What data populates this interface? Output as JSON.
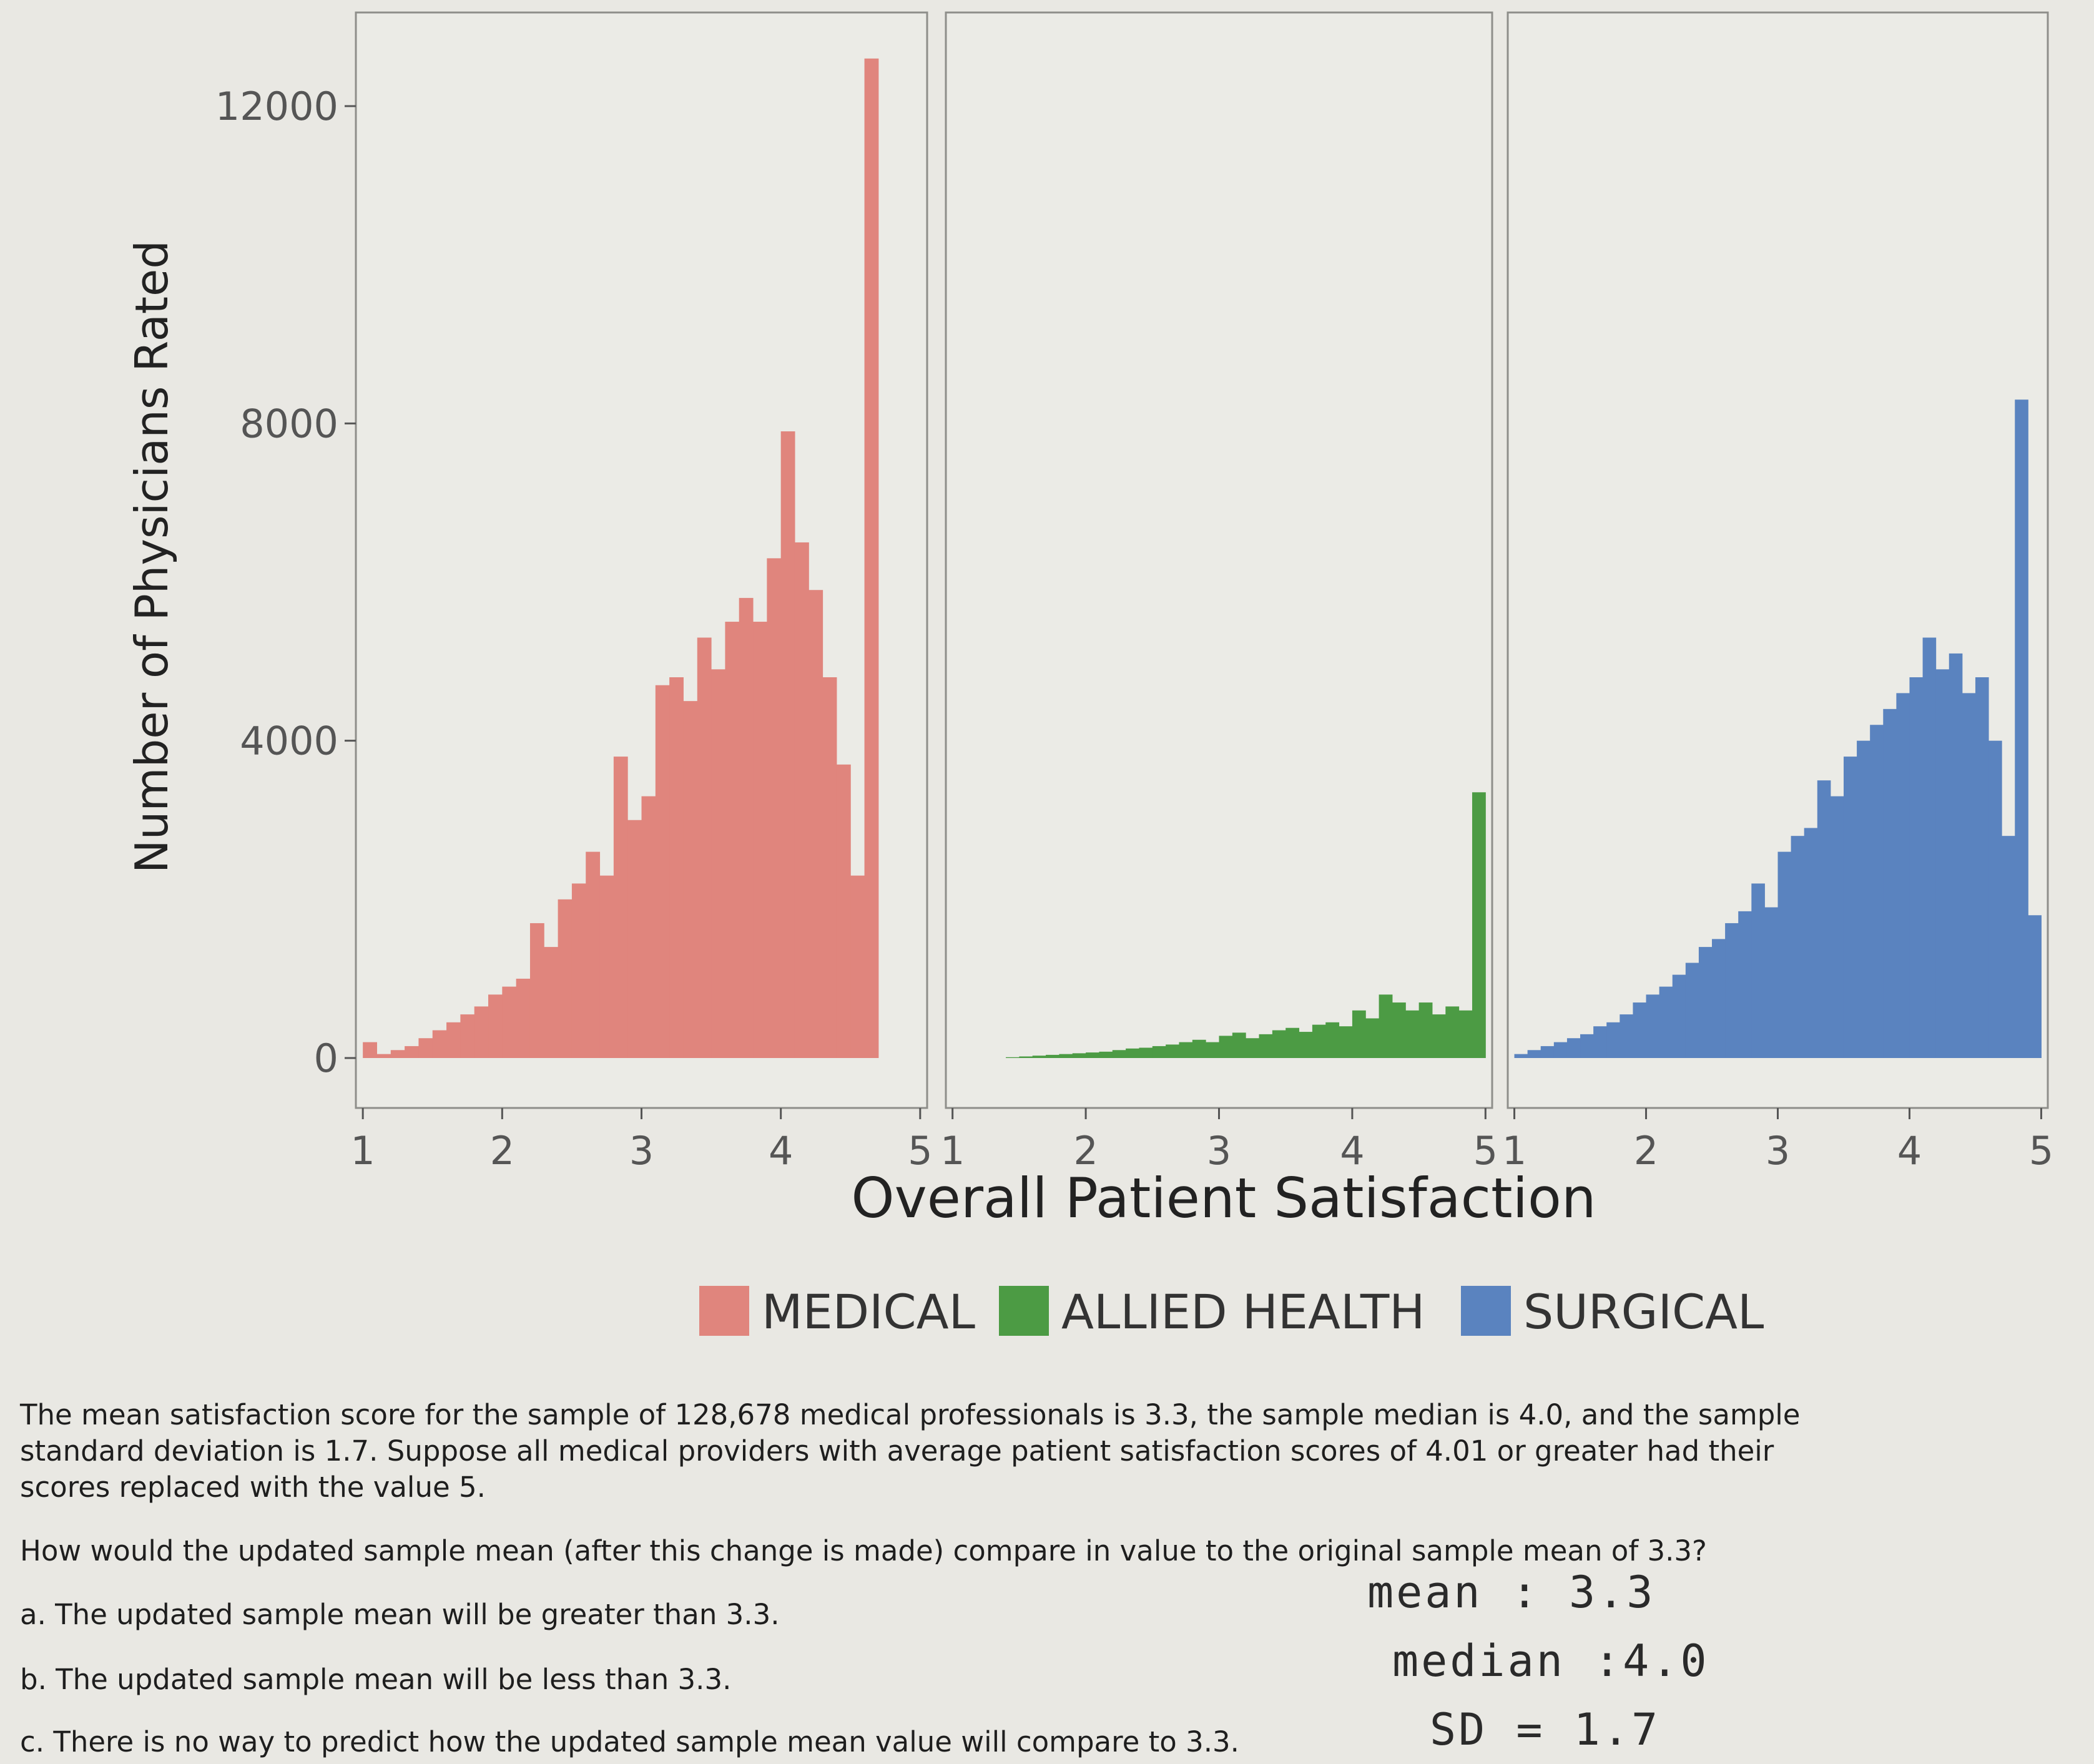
{
  "chart_data": {
    "type": "bar",
    "ylabel": "Number of Physicians Rated",
    "xlabel": "Overall Patient Satisfaction",
    "y_ticks": [
      "0",
      "4000",
      "8000",
      "12000"
    ],
    "ylim": [
      0,
      13000
    ],
    "x_ticks": [
      "1",
      "2",
      "3",
      "4",
      "5"
    ],
    "xlim": [
      0.95,
      5.05
    ],
    "legend": {
      "position": "bottom",
      "items": [
        "MEDICAL",
        "ALLIED HEALTH",
        "SURGICAL"
      ]
    },
    "bin_width": 0.1,
    "panels": [
      {
        "name": "MEDICAL",
        "color": "#e0857d",
        "bins": [
          1.0,
          1.1,
          1.2,
          1.3,
          1.4,
          1.5,
          1.6,
          1.7,
          1.8,
          1.9,
          2.0,
          2.1,
          2.2,
          2.3,
          2.4,
          2.5,
          2.6,
          2.7,
          2.8,
          2.9,
          3.0,
          3.1,
          3.2,
          3.3,
          3.4,
          3.5,
          3.6,
          3.7,
          3.8,
          3.9,
          4.0,
          4.1,
          4.2,
          4.3,
          4.4,
          4.5,
          4.6,
          4.7,
          4.8,
          4.9,
          5.0
        ],
        "values": [
          200,
          50,
          100,
          150,
          250,
          350,
          450,
          550,
          650,
          800,
          900,
          1000,
          1700,
          1400,
          2000,
          2200,
          2600,
          2300,
          3800,
          3000,
          3300,
          4700,
          4800,
          4500,
          5300,
          4900,
          5500,
          5800,
          5500,
          6300,
          7900,
          6500,
          5900,
          4800,
          3700,
          2300,
          12600,
          0,
          0,
          0,
          0
        ]
      },
      {
        "name": "ALLIED HEALTH",
        "color": "#4c9b44",
        "bins": [
          1.0,
          1.1,
          1.2,
          1.3,
          1.4,
          1.5,
          1.6,
          1.7,
          1.8,
          1.9,
          2.0,
          2.1,
          2.2,
          2.3,
          2.4,
          2.5,
          2.6,
          2.7,
          2.8,
          2.9,
          3.0,
          3.1,
          3.2,
          3.3,
          3.4,
          3.5,
          3.6,
          3.7,
          3.8,
          3.9,
          4.0,
          4.1,
          4.2,
          4.3,
          4.4,
          4.5,
          4.6,
          4.7,
          4.8,
          4.9,
          5.0
        ],
        "values": [
          0,
          0,
          0,
          0,
          10,
          20,
          30,
          40,
          50,
          60,
          70,
          80,
          100,
          120,
          130,
          150,
          170,
          200,
          230,
          200,
          280,
          320,
          250,
          300,
          350,
          380,
          330,
          420,
          450,
          400,
          600,
          500,
          800,
          700,
          600,
          700,
          550,
          650,
          600,
          3350,
          0
        ]
      },
      {
        "name": "SURGICAL",
        "color": "#5a83bf",
        "bins": [
          1.0,
          1.1,
          1.2,
          1.3,
          1.4,
          1.5,
          1.6,
          1.7,
          1.8,
          1.9,
          2.0,
          2.1,
          2.2,
          2.3,
          2.4,
          2.5,
          2.6,
          2.7,
          2.8,
          2.9,
          3.0,
          3.1,
          3.2,
          3.3,
          3.4,
          3.5,
          3.6,
          3.7,
          3.8,
          3.9,
          4.0,
          4.1,
          4.2,
          4.3,
          4.4,
          4.5,
          4.6,
          4.7,
          4.8,
          4.9,
          5.0
        ],
        "values": [
          50,
          100,
          150,
          200,
          250,
          300,
          400,
          450,
          550,
          700,
          800,
          900,
          1050,
          1200,
          1400,
          1500,
          1700,
          1850,
          2200,
          1900,
          2600,
          2800,
          2900,
          3500,
          3300,
          3800,
          4000,
          4200,
          4400,
          4600,
          4800,
          5300,
          4900,
          5100,
          4600,
          4800,
          4000,
          2800,
          8300,
          1800,
          0
        ]
      }
    ]
  },
  "text": {
    "para1_line1": "The mean satisfaction score for the sample of 128,678 medical professionals is 3.3, the sample median is 4.0, and the sample",
    "para1_line2": "standard deviation is 1.7.  Suppose all medical providers with average patient satisfaction scores of 4.01 or greater had their",
    "para1_line3": "scores replaced with the value 5.",
    "question": "How would the updated sample mean (after this change is made) compare in value to the original sample mean of 3.3?",
    "option_a": "a. The updated sample mean will be greater than 3.3.",
    "option_b": "b. The updated sample mean will be less than 3.3.",
    "option_c": "c. There is no way to predict how the updated sample mean value will compare to 3.3."
  },
  "handwriting": {
    "mean": "mean : 3.3",
    "median": "median :4.0",
    "sd": "SD = 1.7"
  }
}
